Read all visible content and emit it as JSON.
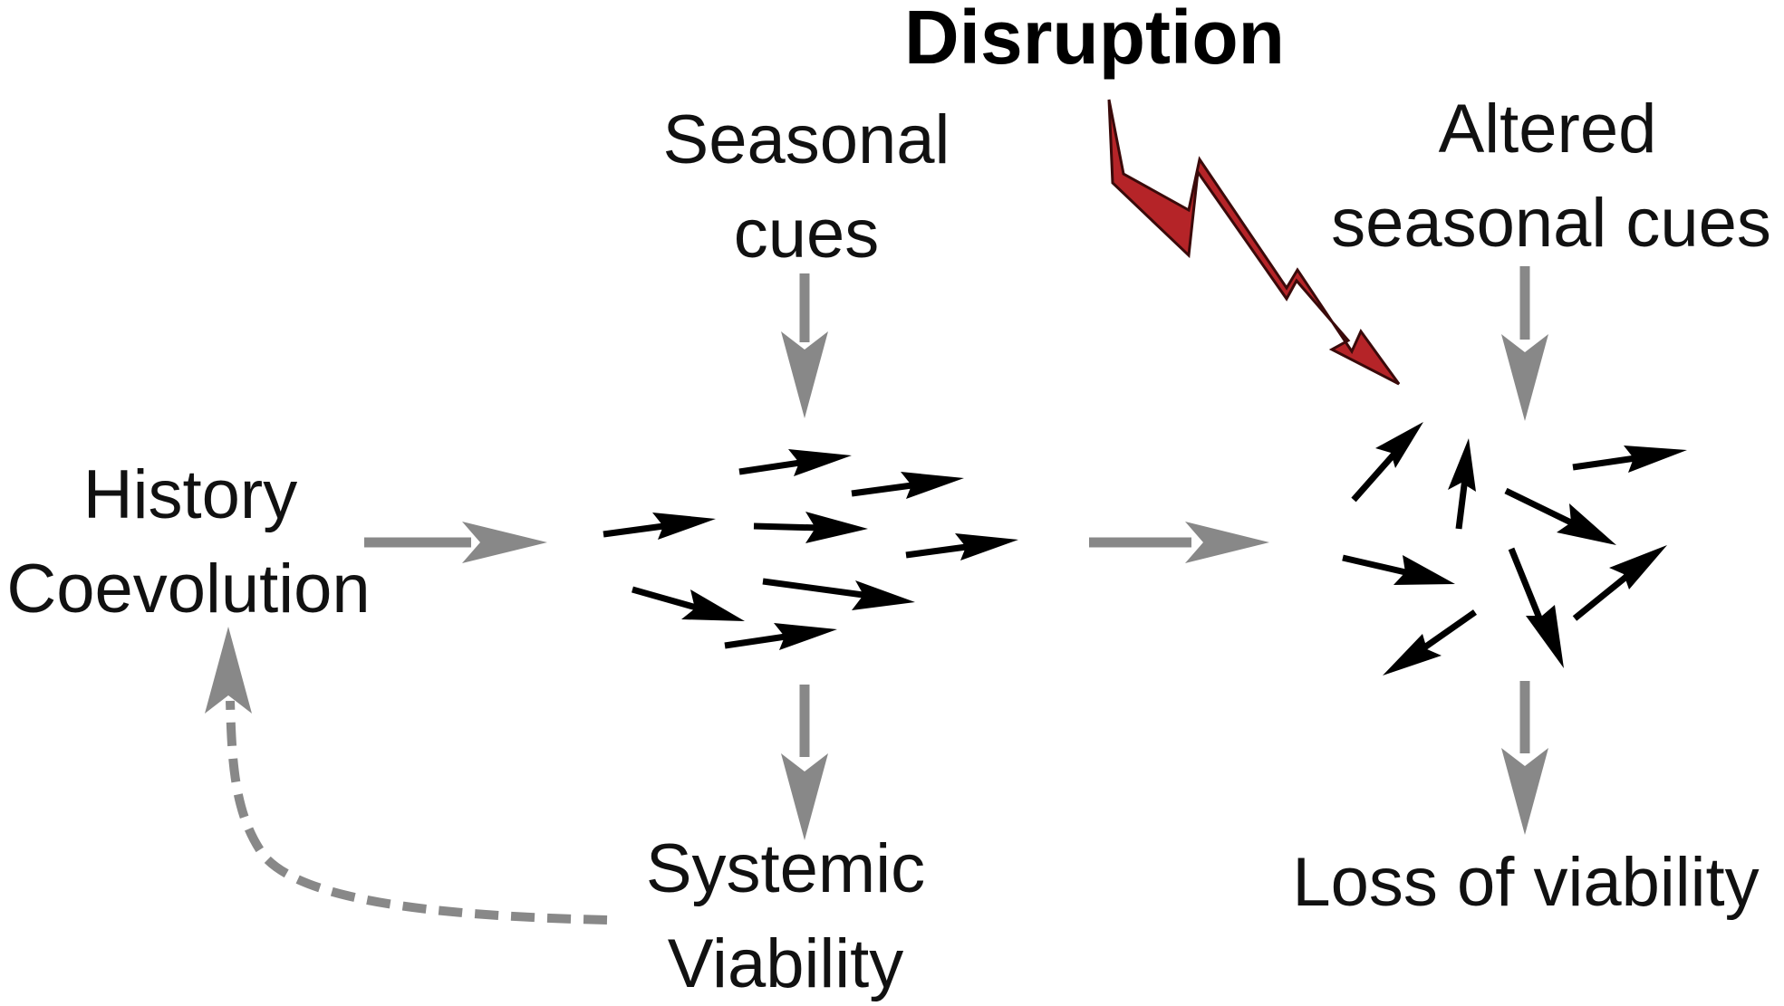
{
  "title": "Disruption",
  "labels": {
    "history": [
      "History",
      "Coevolution"
    ],
    "seasonal_cues": [
      "Seasonal",
      "cues"
    ],
    "systemic_viability": [
      "Systemic",
      "Viability"
    ],
    "altered_seasonal_cues": [
      "Altered",
      "seasonal cues"
    ],
    "loss_of_viability": "Loss of viability"
  },
  "colors": {
    "flow_arrow": "#888888",
    "agent_arrow": "#000000",
    "disruption_bolt_fill": "#b52428",
    "disruption_bolt_stroke": "#3a0a0a",
    "text": "#111111"
  },
  "icons": {
    "disruption": "lightning-bolt-icon"
  }
}
